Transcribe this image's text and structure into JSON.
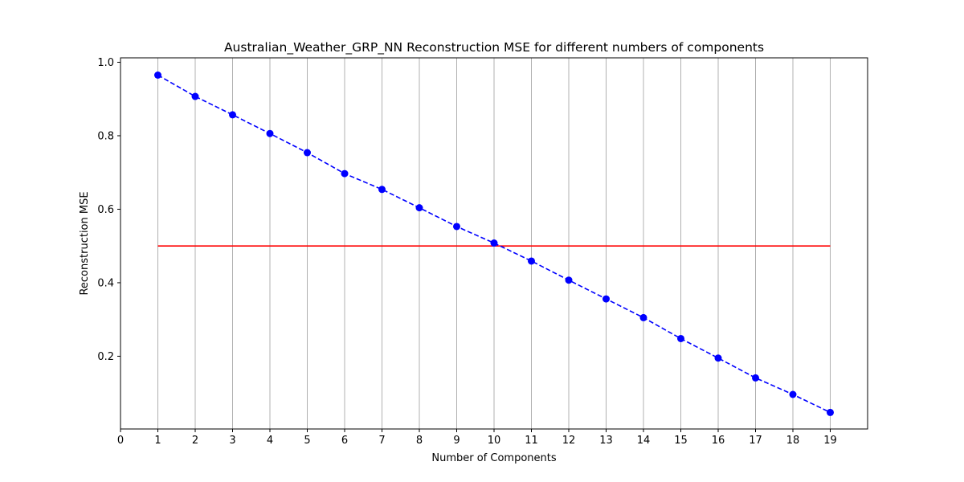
{
  "chart_data": {
    "type": "line",
    "title": "Australian_Weather_GRP_NN Reconstruction MSE for different numbers of components",
    "xlabel": "Number of Components",
    "ylabel": "Reconstruction MSE",
    "xlim": [
      0,
      20
    ],
    "ylim": [
      0.002,
      1.012
    ],
    "x_ticks": [
      0,
      1,
      2,
      3,
      4,
      5,
      6,
      7,
      8,
      9,
      10,
      11,
      12,
      13,
      14,
      15,
      16,
      17,
      18,
      19
    ],
    "y_ticks": [
      0.2,
      0.4,
      0.6,
      0.8,
      1.0
    ],
    "y_tick_labels": [
      "0.2",
      "0.4",
      "0.6",
      "0.8",
      "1.0"
    ],
    "grid": "vertical",
    "series": [
      {
        "x": [
          1,
          2,
          3,
          4,
          5,
          6,
          7,
          8,
          9,
          10,
          11,
          12,
          13,
          14,
          15,
          16,
          17,
          18,
          19
        ],
        "values": [
          0.965,
          0.907,
          0.857,
          0.806,
          0.754,
          0.697,
          0.654,
          0.604,
          0.553,
          0.508,
          0.459,
          0.407,
          0.356,
          0.305,
          0.248,
          0.195,
          0.141,
          0.096,
          0.047
        ],
        "color": "#0000ff",
        "line_style": "dashed",
        "marker": "circle"
      },
      {
        "x": [
          1,
          19
        ],
        "values": [
          0.5,
          0.5
        ],
        "color": "#ff0000",
        "line_style": "solid",
        "marker": "none"
      }
    ]
  }
}
